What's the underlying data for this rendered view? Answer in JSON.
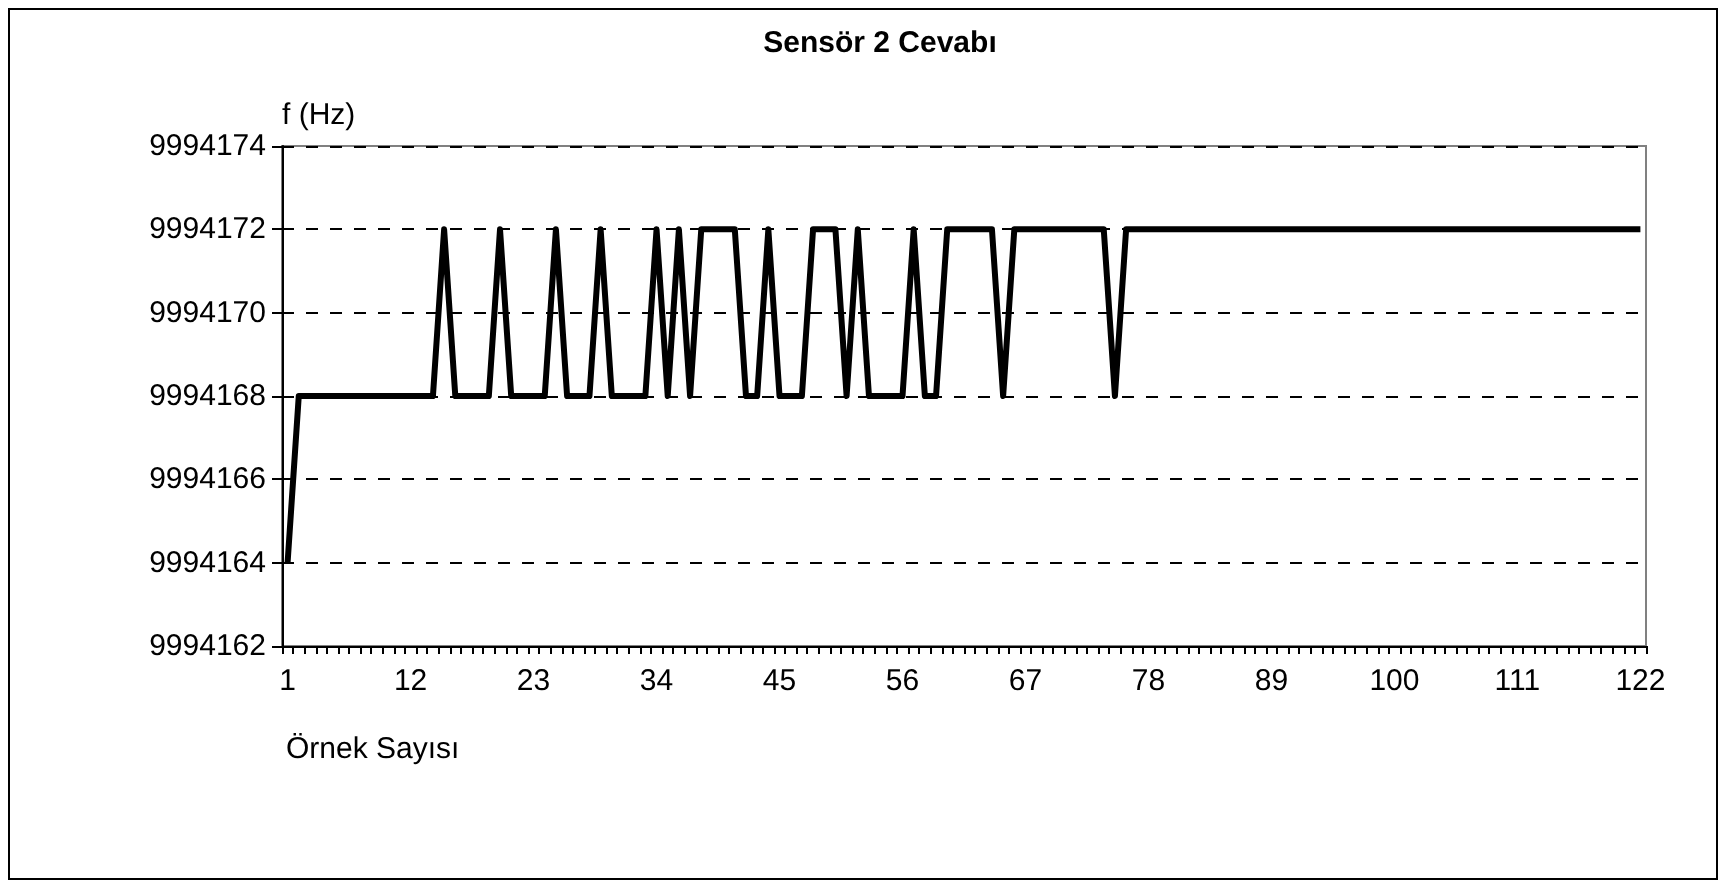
{
  "chart_data": {
    "type": "line",
    "title": "Sensör 2 Cevabı",
    "xlabel": "Örnek Sayısı",
    "ylabel": "f (Hz)",
    "categories": [
      "1",
      null,
      null,
      null,
      null,
      null,
      null,
      null,
      null,
      null,
      null,
      "12",
      null,
      null,
      null,
      null,
      null,
      null,
      null,
      null,
      null,
      null,
      "23",
      null,
      null,
      null,
      null,
      null,
      null,
      null,
      null,
      null,
      null,
      "34",
      null,
      null,
      null,
      null,
      null,
      null,
      null,
      null,
      null,
      null,
      "45",
      null,
      null,
      null,
      null,
      null,
      null,
      null,
      null,
      null,
      null,
      "56",
      null,
      null,
      null,
      null,
      null,
      null,
      null,
      null,
      null,
      null,
      "67",
      null,
      null,
      null,
      null,
      null,
      null,
      null,
      null,
      null,
      null,
      "78",
      null,
      null,
      null,
      null,
      null,
      null,
      null,
      null,
      null,
      null,
      "89",
      null,
      null,
      null,
      null,
      null,
      null,
      null,
      null,
      null,
      null,
      "100",
      null,
      null,
      null,
      null,
      null,
      null,
      null,
      null,
      null,
      null,
      "111",
      null,
      null,
      null,
      null,
      null,
      null,
      null,
      null,
      null,
      null,
      "122"
    ],
    "series": [
      {
        "color": "#000000",
        "values": [
          9994164,
          9994168,
          9994168,
          9994168,
          9994168,
          9994168,
          9994168,
          9994168,
          9994168,
          9994168,
          9994168,
          9994168,
          9994168,
          9994168,
          9994172,
          9994168,
          9994168,
          9994168,
          9994168,
          9994172,
          9994168,
          9994168,
          9994168,
          9994168,
          9994172,
          9994168,
          9994168,
          9994168,
          9994172,
          9994168,
          9994168,
          9994168,
          9994168,
          9994172,
          9994168,
          9994172,
          9994168,
          9994172,
          9994172,
          9994172,
          9994172,
          9994168,
          9994168,
          9994172,
          9994168,
          9994168,
          9994168,
          9994172,
          9994172,
          9994172,
          9994168,
          9994172,
          9994168,
          9994168,
          9994168,
          9994168,
          9994172,
          9994168,
          9994168,
          9994172,
          9994172,
          9994172,
          9994172,
          9994172,
          9994168,
          9994172,
          9994172,
          9994172,
          9994172,
          9994172,
          9994172,
          9994172,
          9994172,
          9994172,
          9994168,
          9994172,
          9994172,
          9994172,
          9994172,
          9994172,
          9994172,
          9994172,
          9994172,
          9994172,
          9994172,
          9994172,
          9994172,
          9994172,
          9994172,
          9994172,
          9994172,
          9994172,
          9994172,
          9994172,
          9994172,
          9994172,
          9994172,
          9994172,
          9994172,
          9994172,
          9994172,
          9994172,
          9994172,
          9994172,
          9994172,
          9994172,
          9994172,
          9994172,
          9994172,
          9994172,
          9994172,
          9994172,
          9994172,
          9994172,
          9994172,
          9994172,
          9994172,
          9994172,
          9994172,
          9994172,
          9994172,
          9994172
        ]
      }
    ],
    "ylim": [
      9994162,
      9994174
    ],
    "yticks": [
      9994162,
      9994164,
      9994166,
      9994168,
      9994170,
      9994172,
      9994174
    ],
    "grid": "y",
    "legend": false,
    "marker": "none",
    "line_style": "solid"
  }
}
